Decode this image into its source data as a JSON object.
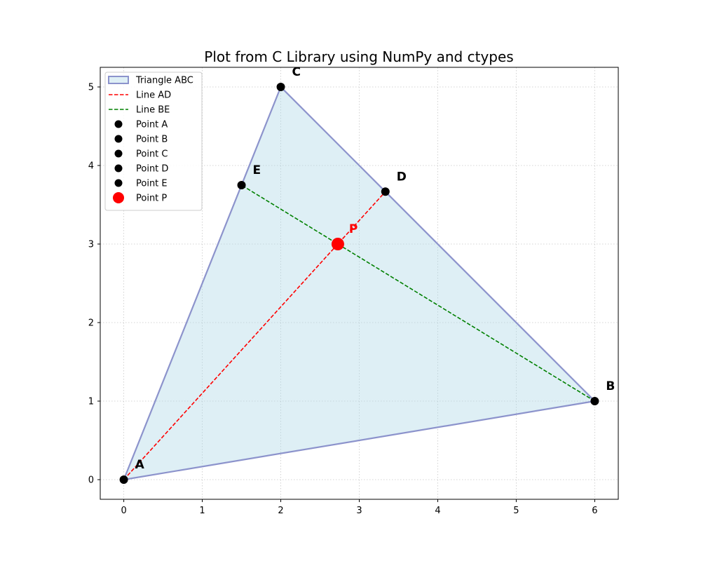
{
  "chart_data": {
    "type": "scatter",
    "title": "Plot from C Library using NumPy and ctypes",
    "xlabel": "",
    "ylabel": "",
    "xlim": [
      -0.3,
      6.3
    ],
    "ylim": [
      -0.25,
      5.25
    ],
    "xticks": [
      0,
      1,
      2,
      3,
      4,
      5,
      6
    ],
    "yticks": [
      0,
      1,
      2,
      3,
      4,
      5
    ],
    "grid": true,
    "legend_position": "top-left",
    "triangle": {
      "name": "Triangle ABC",
      "vertices": [
        [
          0,
          0
        ],
        [
          6,
          1
        ],
        [
          2,
          5
        ]
      ],
      "fill_color": "#add8e6",
      "edge_color": "#8c93cc"
    },
    "lines": [
      {
        "name": "Line AD",
        "x": [
          0,
          3.333
        ],
        "y": [
          0,
          3.667
        ],
        "color": "#ff0000"
      },
      {
        "name": "Line BE",
        "x": [
          6,
          1.5
        ],
        "y": [
          1,
          3.75
        ],
        "color": "#008000"
      }
    ],
    "points": [
      {
        "name": "Point A",
        "label": "A",
        "x": 0,
        "y": 0,
        "color": "#000000",
        "size": "normal"
      },
      {
        "name": "Point B",
        "label": "B",
        "x": 6,
        "y": 1,
        "color": "#000000",
        "size": "normal"
      },
      {
        "name": "Point C",
        "label": "C",
        "x": 2,
        "y": 5,
        "color": "#000000",
        "size": "normal"
      },
      {
        "name": "Point D",
        "label": "D",
        "x": 3.333,
        "y": 3.667,
        "color": "#000000",
        "size": "normal"
      },
      {
        "name": "Point E",
        "label": "E",
        "x": 1.5,
        "y": 3.75,
        "color": "#000000",
        "size": "normal"
      },
      {
        "name": "Point P",
        "label": "P",
        "x": 2.727,
        "y": 3.0,
        "color": "#ff0000",
        "size": "large"
      }
    ]
  }
}
